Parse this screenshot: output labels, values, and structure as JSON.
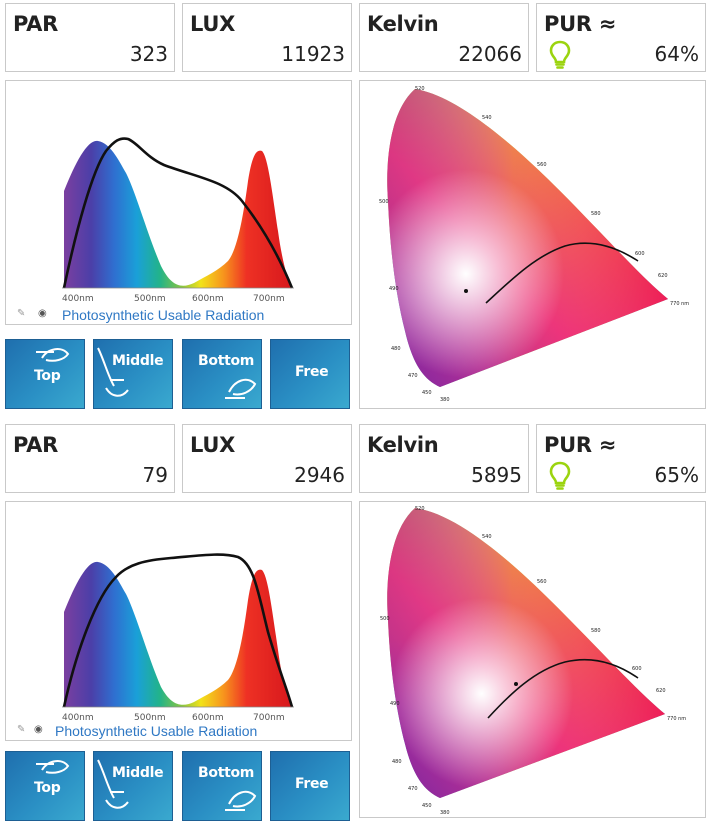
{
  "readings": [
    {
      "par": {
        "label": "PAR",
        "value": "323"
      },
      "lux": {
        "label": "LUX",
        "value": "11923"
      },
      "kelvin": {
        "label": "Kelvin",
        "value": "22066"
      },
      "pur": {
        "label": "PUR ≈",
        "value": "64%",
        "icon": "lightbulb-icon",
        "icon_color": "#9bd40f"
      },
      "spectrum": {
        "ticks": [
          "400nm",
          "500nm",
          "600nm",
          "700nm"
        ],
        "legend_link": "Photosynthetic Usable Radiation"
      },
      "cie": {
        "wavelength_labels": [
          "520",
          "540",
          "560",
          "580",
          "600",
          "620",
          "770 nm",
          "500",
          "490",
          "480",
          "470",
          "450",
          "380"
        ]
      },
      "buttons": [
        "Top",
        "Middle",
        "Bottom",
        "Free"
      ]
    },
    {
      "par": {
        "label": "PAR",
        "value": "79"
      },
      "lux": {
        "label": "LUX",
        "value": "2946"
      },
      "kelvin": {
        "label": "Kelvin",
        "value": "5895"
      },
      "pur": {
        "label": "PUR ≈",
        "value": "65%",
        "icon": "lightbulb-icon",
        "icon_color": "#9bd40f"
      },
      "spectrum": {
        "ticks": [
          "400nm",
          "500nm",
          "600nm",
          "700nm"
        ],
        "legend_link": "Photosynthetic Usable Radiation"
      },
      "cie": {
        "wavelength_labels": [
          "520",
          "540",
          "560",
          "580",
          "600",
          "620",
          "770 nm",
          "500",
          "490",
          "480",
          "470",
          "450",
          "380"
        ]
      },
      "buttons": [
        "Top",
        "Middle",
        "Bottom",
        "Free"
      ]
    }
  ],
  "colors": {
    "button_gradient_start": "#1f6fae",
    "button_gradient_end": "#3aa9cf",
    "link": "#2f78c4",
    "border": "#c9c9c9"
  }
}
